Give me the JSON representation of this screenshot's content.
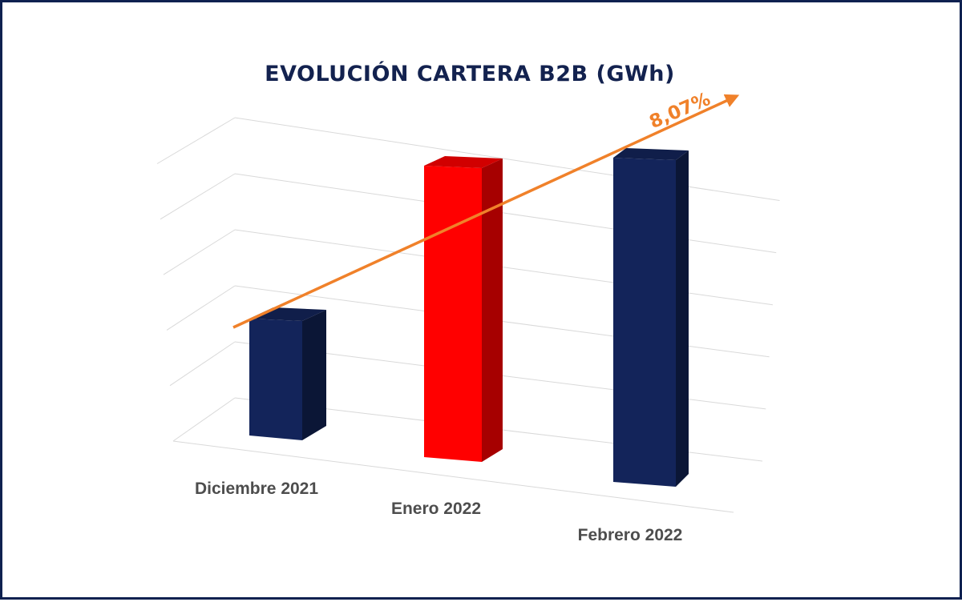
{
  "chart_data": {
    "type": "bar",
    "title": "EVOLUCIÓN CARTERA B2B (GWh)",
    "categories": [
      "Diciembre 2021",
      "Enero 2022",
      "Febrero 2022"
    ],
    "values": [
      1.85,
      4.6,
      5.0
    ],
    "ylim": [
      0,
      5.5
    ],
    "grid": true,
    "gridlines": 6,
    "legend": "none",
    "trend": {
      "label": "8,07%",
      "color": "#f0812a"
    },
    "colors": {
      "bar_default": "#13245a",
      "bar_highlight": "#ff0000",
      "title": "#13224f",
      "labels": "#4d4d4d",
      "grid": "#d9d9d9",
      "frame": "#0f2150"
    },
    "highlight_index": 1
  }
}
